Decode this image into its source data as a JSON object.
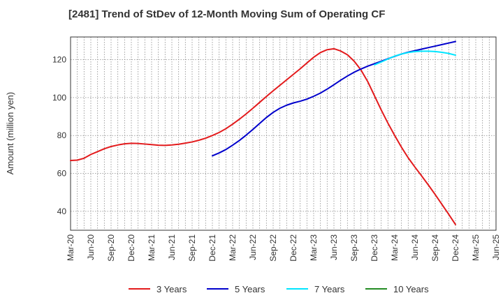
{
  "chart_data": {
    "type": "line",
    "title": "[2481]  Trend of StDev of 12-Month Moving Sum of Operating CF",
    "ylabel": "Amount (million yen)",
    "xlabel": "",
    "ylim": [
      30,
      132
    ],
    "yticks": [
      40,
      60,
      80,
      100,
      120
    ],
    "xlim": [
      "Mar-20",
      "Jun-25"
    ],
    "xtick_labels": [
      "Mar-20",
      "Jun-20",
      "Sep-20",
      "Dec-20",
      "Mar-21",
      "Jun-21",
      "Sep-21",
      "Dec-21",
      "Mar-22",
      "Jun-22",
      "Sep-22",
      "Dec-22",
      "Mar-23",
      "Jun-23",
      "Sep-23",
      "Dec-23",
      "Mar-24",
      "Jun-24",
      "Sep-24",
      "Dec-24",
      "Mar-25",
      "Jun-25"
    ],
    "grid": true,
    "legend_position": "bottom",
    "series": [
      {
        "name": "3 Years",
        "color": "#e31a1c",
        "points": [
          [
            "Mar-20",
            66.8
          ],
          [
            "Apr-20",
            67.0
          ],
          [
            "May-20",
            68.0
          ],
          [
            "Jun-20",
            70.0
          ],
          [
            "Jul-20",
            71.5
          ],
          [
            "Aug-20",
            73.0
          ],
          [
            "Sep-20",
            74.2
          ],
          [
            "Oct-20",
            75.0
          ],
          [
            "Nov-20",
            75.6
          ],
          [
            "Dec-20",
            75.9
          ],
          [
            "Jan-21",
            75.8
          ],
          [
            "Feb-21",
            75.5
          ],
          [
            "Mar-21",
            75.2
          ],
          [
            "Apr-21",
            74.9
          ],
          [
            "May-21",
            74.8
          ],
          [
            "Jun-21",
            75.0
          ],
          [
            "Jul-21",
            75.4
          ],
          [
            "Aug-21",
            76.0
          ],
          [
            "Sep-21",
            76.6
          ],
          [
            "Oct-21",
            77.5
          ],
          [
            "Nov-21",
            78.6
          ],
          [
            "Dec-21",
            80.0
          ],
          [
            "Jan-22",
            81.6
          ],
          [
            "Feb-22",
            83.6
          ],
          [
            "Mar-22",
            86.0
          ],
          [
            "Apr-22",
            88.6
          ],
          [
            "May-22",
            91.4
          ],
          [
            "Jun-22",
            94.4
          ],
          [
            "Jul-22",
            97.5
          ],
          [
            "Aug-22",
            100.6
          ],
          [
            "Sep-22",
            103.6
          ],
          [
            "Oct-22",
            106.5
          ],
          [
            "Nov-22",
            109.4
          ],
          [
            "Dec-22",
            112.3
          ],
          [
            "Jan-23",
            115.2
          ],
          [
            "Feb-23",
            118.3
          ],
          [
            "Mar-23",
            121.3
          ],
          [
            "Apr-23",
            123.8
          ],
          [
            "May-23",
            125.3
          ],
          [
            "Jun-23",
            125.8
          ],
          [
            "Jul-23",
            124.6
          ],
          [
            "Aug-23",
            122.6
          ],
          [
            "Sep-23",
            119.2
          ],
          [
            "Oct-23",
            114.6
          ],
          [
            "Nov-23",
            108.5
          ],
          [
            "Dec-23",
            101.0
          ],
          [
            "Jan-24",
            93.5
          ],
          [
            "Feb-24",
            86.5
          ],
          [
            "Mar-24",
            80.0
          ],
          [
            "Apr-24",
            73.8
          ],
          [
            "May-24",
            68.2
          ],
          [
            "Jun-24",
            63.3
          ],
          [
            "Jul-24",
            58.6
          ],
          [
            "Aug-24",
            53.8
          ],
          [
            "Sep-24",
            48.8
          ],
          [
            "Oct-24",
            43.6
          ],
          [
            "Nov-24",
            38.4
          ],
          [
            "Dec-24",
            33.0
          ]
        ]
      },
      {
        "name": "5 Years",
        "color": "#0000cc",
        "points": [
          [
            "Dec-21",
            69.3
          ],
          [
            "Jan-22",
            70.8
          ],
          [
            "Feb-22",
            72.6
          ],
          [
            "Mar-22",
            74.9
          ],
          [
            "Apr-22",
            77.4
          ],
          [
            "May-22",
            80.2
          ],
          [
            "Jun-22",
            83.2
          ],
          [
            "Jul-22",
            86.4
          ],
          [
            "Aug-22",
            89.5
          ],
          [
            "Sep-22",
            92.2
          ],
          [
            "Oct-22",
            94.4
          ],
          [
            "Nov-22",
            96.0
          ],
          [
            "Dec-22",
            97.2
          ],
          [
            "Jan-23",
            98.1
          ],
          [
            "Feb-23",
            99.2
          ],
          [
            "Mar-23",
            100.7
          ],
          [
            "Apr-23",
            102.4
          ],
          [
            "May-23",
            104.5
          ],
          [
            "Jun-23",
            106.8
          ],
          [
            "Jul-23",
            109.2
          ],
          [
            "Aug-23",
            111.4
          ],
          [
            "Sep-23",
            113.4
          ],
          [
            "Oct-23",
            115.1
          ],
          [
            "Nov-23",
            116.6
          ],
          [
            "Dec-23",
            117.9
          ],
          [
            "Jan-24",
            119.2
          ],
          [
            "Feb-24",
            120.5
          ],
          [
            "Mar-24",
            121.8
          ],
          [
            "Apr-24",
            123.0
          ],
          [
            "May-24",
            124.0
          ],
          [
            "Jun-24",
            124.8
          ],
          [
            "Jul-24",
            125.6
          ],
          [
            "Aug-24",
            126.4
          ],
          [
            "Sep-24",
            127.2
          ],
          [
            "Oct-24",
            128.0
          ],
          [
            "Nov-24",
            128.8
          ],
          [
            "Dec-24",
            129.6
          ]
        ]
      },
      {
        "name": "7 Years",
        "color": "#00e5ff",
        "points": [
          [
            "Dec-23",
            117.3
          ],
          [
            "Jan-24",
            118.8
          ],
          [
            "Feb-24",
            120.4
          ],
          [
            "Mar-24",
            121.9
          ],
          [
            "Apr-24",
            123.0
          ],
          [
            "May-24",
            123.8
          ],
          [
            "Jun-24",
            124.3
          ],
          [
            "Jul-24",
            124.5
          ],
          [
            "Aug-24",
            124.5
          ],
          [
            "Sep-24",
            124.3
          ],
          [
            "Oct-24",
            123.9
          ],
          [
            "Nov-24",
            123.3
          ],
          [
            "Dec-24",
            122.4
          ]
        ]
      },
      {
        "name": "10 Years",
        "color": "#228b22",
        "points": []
      }
    ]
  }
}
